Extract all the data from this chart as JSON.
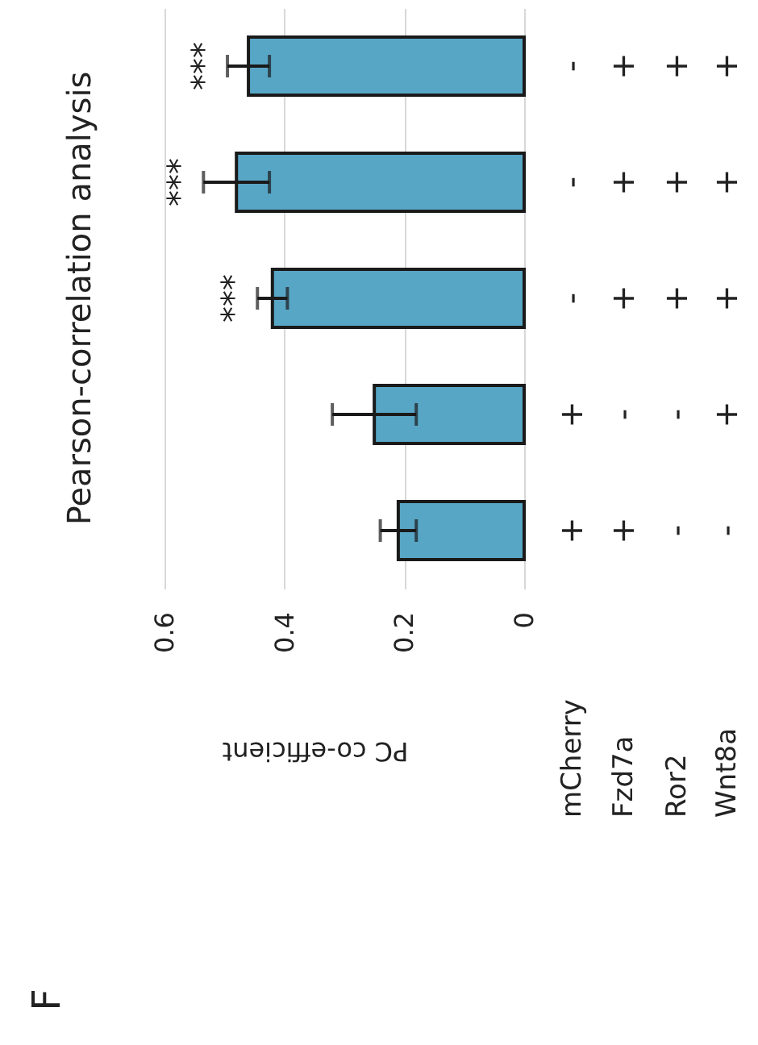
{
  "chart_data": {
    "type": "bar",
    "orientation": "horizontal",
    "title": "Pearson-correlation analysis",
    "xlabel": "PC co-efficient",
    "categories": [
      null,
      null,
      null,
      null,
      null
    ],
    "values": [
      0.46,
      0.48,
      0.42,
      0.25,
      0.21
    ],
    "errors": [
      0.035,
      0.055,
      0.025,
      0.07,
      0.03
    ],
    "value_labels": [
      "***",
      "***",
      "***",
      null,
      null
    ],
    "color": "#58a6c6",
    "xlim": [
      0.6,
      0
    ],
    "xticks": [
      0.6,
      0.4,
      0.2,
      0
    ],
    "grid": "x",
    "annotations": [
      "F",
      "mCherry",
      "Fzd7a",
      "Ror2",
      "Wnt8a",
      "-",
      "+",
      "+",
      "+",
      "-",
      "+",
      "+",
      "+",
      "-",
      "+",
      "+",
      "+",
      "+",
      "-",
      "-",
      "+",
      "+",
      "+",
      "-",
      "-"
    ]
  }
}
